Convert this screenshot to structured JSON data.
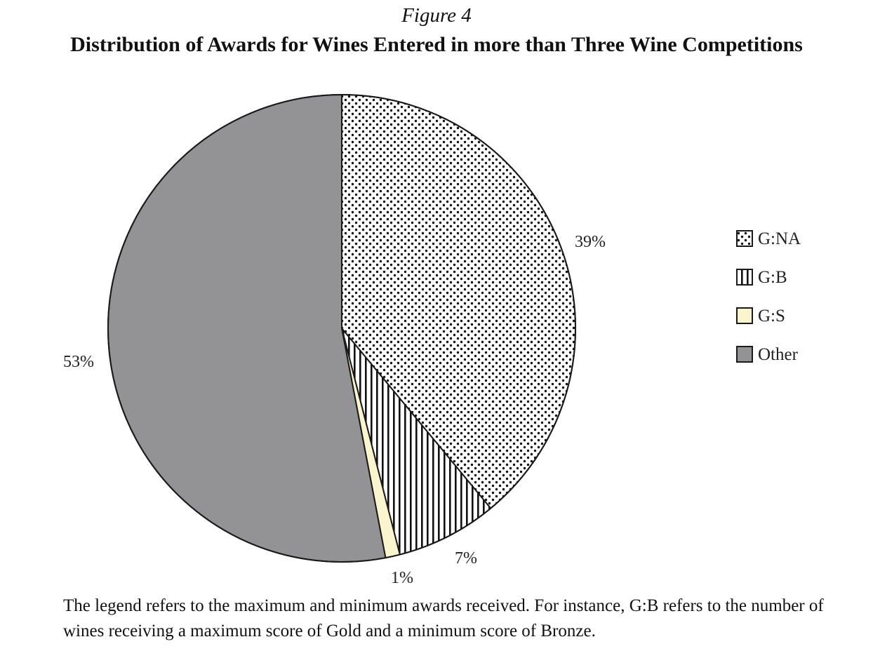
{
  "figure_label": "Figure 4",
  "chart_data": {
    "type": "pie",
    "title": "Distribution of Awards for Wines Entered in more than Three Wine Competitions",
    "slices": [
      {
        "name": "G:NA",
        "value": 39,
        "label": "39%",
        "fill": "dots",
        "color": "#ffffff"
      },
      {
        "name": "G:B",
        "value": 7,
        "label": "7%",
        "fill": "vertical-stripes",
        "color": "#ffffff"
      },
      {
        "name": "G:S",
        "value": 1,
        "label": "1%",
        "fill": "solid",
        "color": "#fbf5cf"
      },
      {
        "name": "Other",
        "value": 53,
        "label": "53%",
        "fill": "solid",
        "color": "#939396"
      }
    ],
    "start": "12 o'clock",
    "direction": "clockwise",
    "legend": {
      "position": "right",
      "entries": [
        "G:NA",
        "G:B",
        "G:S",
        "Other"
      ]
    }
  },
  "note": "The legend refers to the maximum and minimum awards received. For instance, G:B refers to the number of wines receiving a maximum score of Gold and a minimum score of Bronze."
}
